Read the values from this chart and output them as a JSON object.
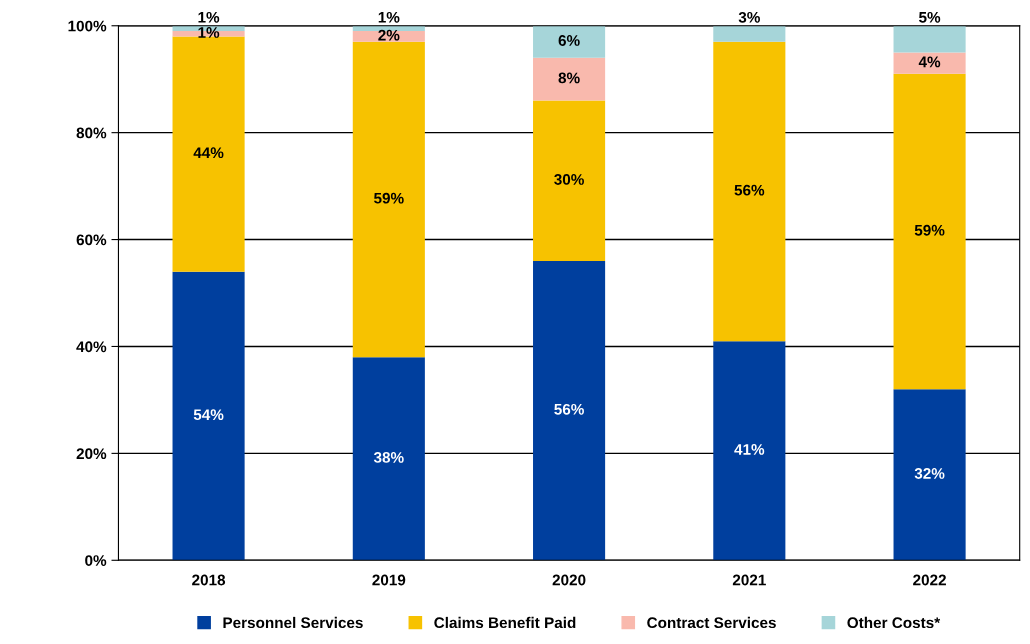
{
  "chart_data": {
    "type": "bar",
    "stacked": true,
    "categories": [
      "2018",
      "2019",
      "2020",
      "2021",
      "2022"
    ],
    "series": [
      {
        "name": "Personnel Services",
        "color": "#003f9e",
        "values": [
          54,
          38,
          56,
          41,
          32
        ],
        "value_labels": [
          "54%",
          "38%",
          "56%",
          "41%",
          "32%"
        ]
      },
      {
        "name": "Claims Benefit Paid",
        "color": "#f7c200",
        "values": [
          44,
          59,
          30,
          56,
          59
        ],
        "value_labels": [
          "44%",
          "59%",
          "30%",
          "56%",
          "59%"
        ]
      },
      {
        "name": "Contract Services",
        "color": "#f9b9ad",
        "values": [
          1,
          2,
          8,
          0,
          4
        ],
        "value_labels": [
          "1%",
          "2%",
          "8%",
          null,
          "4%"
        ]
      },
      {
        "name": "Other Costs*",
        "color": "#a6d5d9",
        "values": [
          1,
          1,
          6,
          3,
          5
        ],
        "value_labels": [
          "1%",
          "1%",
          "6%",
          "3%",
          "5%"
        ]
      }
    ],
    "ylim": [
      0,
      100
    ],
    "yticks": [
      {
        "value": 0,
        "label": "0%"
      },
      {
        "value": 20,
        "label": "20%"
      },
      {
        "value": 40,
        "label": "40%"
      },
      {
        "value": 60,
        "label": "60%"
      },
      {
        "value": 80,
        "label": "80%"
      },
      {
        "value": 100,
        "label": "100%"
      }
    ],
    "grid": "y",
    "legend": "bottom"
  }
}
